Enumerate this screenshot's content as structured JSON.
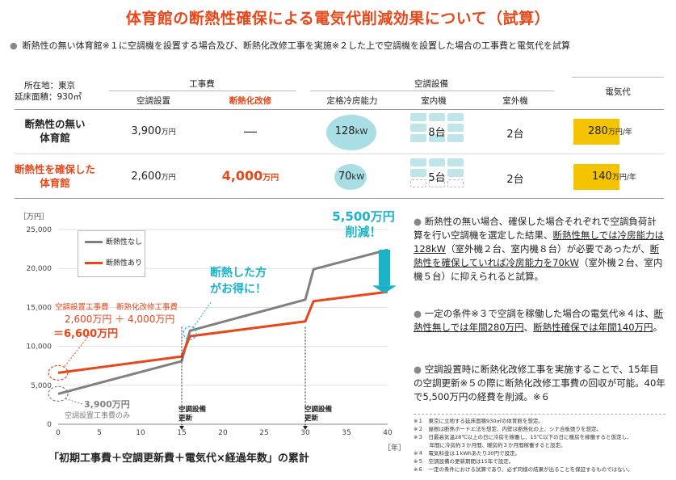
{
  "title": "体育館の断熱性確保による電気代削減効果について（試算）",
  "subtitle": "断熱性の無い体育館※１に空調機を設置する場合及び、断熱化改修工事を実施※２した上で空調機を設置した場合の工事費と電気代を試算",
  "location": {
    "line1": "所在地：東京",
    "line2": "延床面積：930㎡"
  },
  "table": {
    "group_construction": "工事費",
    "group_equipment": "空調設備",
    "col_ac_install": "空調設置",
    "col_insulation": "断熱化改修",
    "col_capacity": "定格冷房能力",
    "col_indoor": "室内機",
    "col_outdoor": "室外機",
    "col_electricity": "電気代",
    "rows": [
      {
        "label_line1": "断熱性の無い",
        "label_line2": "体育館",
        "ac_install": "3,900",
        "ac_install_unit": "万円",
        "insulation": "―",
        "insulation_unit": "",
        "capacity": "128",
        "capacity_unit": "kW",
        "indoor": "8台",
        "outdoor": "2台",
        "electricity": "280",
        "electricity_unit": "万円/年"
      },
      {
        "label_line1": "断熱性を確保した",
        "label_line2": "体育館",
        "ac_install": "2,600",
        "ac_install_unit": "万円",
        "insulation": "4,000",
        "insulation_unit": "万円",
        "capacity": "70",
        "capacity_unit": "kW",
        "indoor": "5台",
        "outdoor": "2台",
        "electricity": "140",
        "electricity_unit": "万円/年"
      }
    ]
  },
  "chart_data": {
    "type": "line",
    "ylabel": "［万円］",
    "xlabel": "［年］",
    "ylim": [
      0,
      25000
    ],
    "xlim": [
      0,
      40
    ],
    "yticks": [
      "0",
      "5,000",
      "10,000",
      "15,000",
      "20,000",
      "25,000"
    ],
    "xticks": [
      "0",
      "5",
      "10",
      "15",
      "20",
      "25",
      "30",
      "35",
      "40"
    ],
    "grid": true,
    "legend_position": "top-left",
    "series": [
      {
        "name": "断熱性なし",
        "color": "#808080",
        "points": [
          [
            0,
            3900
          ],
          [
            15,
            8100
          ],
          [
            16,
            12000
          ],
          [
            30,
            16000
          ],
          [
            31,
            19900
          ],
          [
            40,
            22400
          ]
        ]
      },
      {
        "name": "断熱性あり",
        "color": "#e8471a",
        "points": [
          [
            0,
            6600
          ],
          [
            15,
            8700
          ],
          [
            16,
            11300
          ],
          [
            30,
            13200
          ],
          [
            31,
            15800
          ],
          [
            40,
            17000
          ]
        ]
      }
    ],
    "annotations": {
      "savings_line1": "5,500万円",
      "savings_line2": "削減！",
      "better_line1": "断熱した方",
      "better_line2": "がお得に！",
      "initial_label_top": "空調設置工事費　断熱化改修工事費",
      "initial_sum": "2,600万円 ＋ 4,000万円",
      "initial_total": "＝6,600万円",
      "no_ins_value": "3,900万円",
      "no_ins_caption": "空調設置工事費のみ",
      "renewal_label_1": "空調設備",
      "renewal_label_2": "更新"
    },
    "caption": "「初期工事費＋空調更新費＋電気代×経過年数」の累計"
  },
  "notes": [
    {
      "pre": "断熱性の無い場合、確保した場合それぞれで空調負荷計算を行い空調機を選定した結果、",
      "u1": "断熱性無しでは冷房能力は128kW",
      "mid": "（室外機２台、室内機８台）が必要であったが、",
      "u2": "断熱性を確保していれば冷房能力を70kW",
      "post": "（室外機２台、室内機５台）に抑えられると試算。"
    },
    {
      "pre": "一定の条件※３で空調を稼働した場合の電気代※４は、",
      "u1": "断熱性無しでは年間280万円",
      "mid": "、",
      "u2": "断熱性確保では年間140万円",
      "post": "。"
    },
    {
      "pre": "空調設置時に断熱化改修工事を実施することで、15年目の空調更新※５の際に断熱化改修工事費の回収が可能。40年で5,500万円の経費を削減。※６",
      "u1": "",
      "mid": "",
      "u2": "",
      "post": ""
    }
  ],
  "footnotes": [
    "※１　東京に立地する延床面積930㎡の体育館を想定。",
    "※２　屋根は断熱ボードエ法を想定、内壁は断熱化の上、シナ合板張りを想定。",
    "※３　日最高気温28℃以上の日に冷房を稼働し、15℃以下の日に暖房を稼働すると仮定し、",
    "　　　年間に冷房約３か月間、暖房約３か月間稼働すると設定。",
    "※４　電気料金は１kWhあたり30円で設定。",
    "※５　空調設備の更新期間は15年で設定。",
    "※６　一定の条件における試算であり、必ず同様の結果が出ることを保証するものではない。"
  ]
}
